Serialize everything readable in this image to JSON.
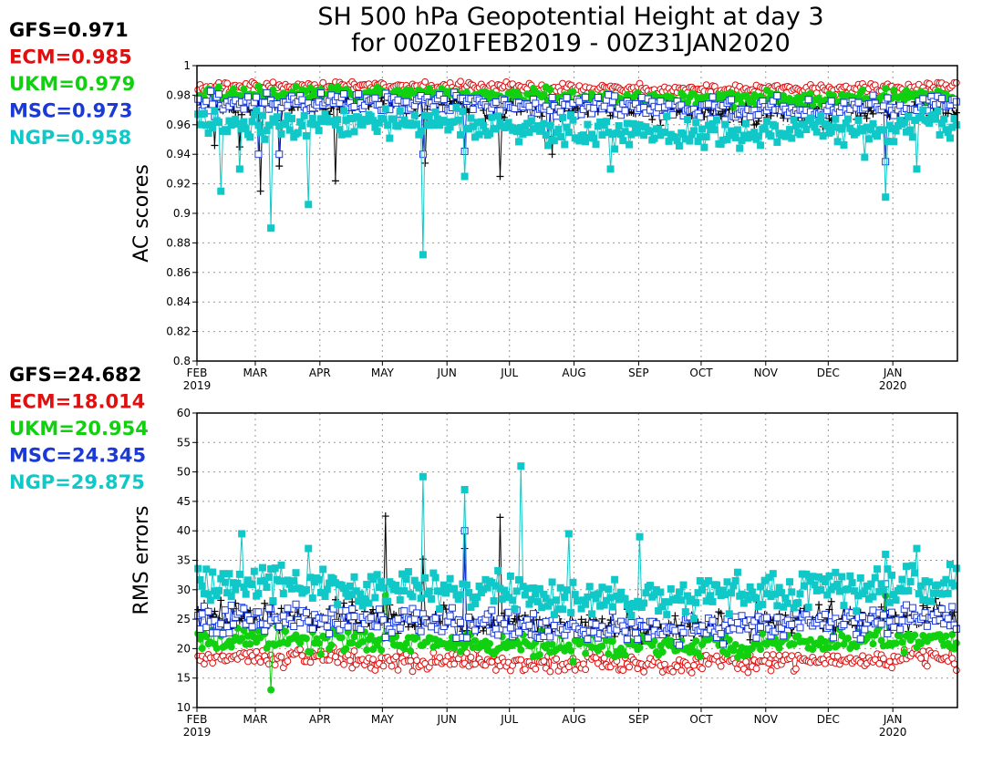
{
  "title": {
    "line1": "SH 500 hPa Geopotential Height at day 3",
    "line2": "for 00Z01FEB2019 - 00Z31JAN2020"
  },
  "colors": {
    "GFS": "#000000",
    "ECM": "#e01010",
    "UKM": "#10d010",
    "MSC": "#1a3ad8",
    "NGP": "#10c8c8"
  },
  "months": [
    "FEB",
    "MAR",
    "APR",
    "MAY",
    "JUN",
    "JUL",
    "AUG",
    "SEP",
    "OCT",
    "NOV",
    "DEC",
    "JAN"
  ],
  "month_days": [
    28,
    31,
    30,
    31,
    30,
    31,
    31,
    30,
    31,
    30,
    31,
    31
  ],
  "year_labels": [
    "2019",
    "2020"
  ],
  "chart_data": [
    {
      "type": "line",
      "ylabel": "AC scores",
      "ylim": [
        0.8,
        1.0
      ],
      "yticks": [
        "0.8",
        "0.82",
        "0.84",
        "0.86",
        "0.88",
        "0.9",
        "0.92",
        "0.94",
        "0.96",
        "0.98",
        "1"
      ],
      "grid": true,
      "x_range": [
        "2019-02-01",
        "2020-01-31"
      ],
      "scores": [
        {
          "model": "GFS",
          "label": "GFS=0.971"
        },
        {
          "model": "ECM",
          "label": "ECM=0.985"
        },
        {
          "model": "UKM",
          "label": "UKM=0.979"
        },
        {
          "model": "MSC",
          "label": "MSC=0.973"
        },
        {
          "model": "NGP",
          "label": "NGP=0.958"
        }
      ],
      "series": [
        {
          "name": "GFS",
          "marker": "plus",
          "mean": 0.971,
          "spread": 0.012,
          "dips": [
            [
              8,
              0.946
            ],
            [
              20,
              0.945
            ],
            [
              30,
              0.915
            ],
            [
              39,
              0.932
            ],
            [
              66,
              0.922
            ],
            [
              109,
              0.934
            ],
            [
              145,
              0.925
            ],
            [
              170,
              0.94
            ],
            [
              309,
              0.972
            ],
            [
              325,
              0.973
            ]
          ]
        },
        {
          "name": "ECM",
          "marker": "circle",
          "mean": 0.985,
          "spread": 0.005,
          "dips": []
        },
        {
          "name": "UKM",
          "marker": "filled-circle",
          "mean": 0.979,
          "spread": 0.007,
          "dips": []
        },
        {
          "name": "MSC",
          "marker": "square",
          "mean": 0.973,
          "spread": 0.01,
          "dips": [
            [
              29,
              0.94
            ],
            [
              39,
              0.94
            ],
            [
              108,
              0.94
            ],
            [
              128,
              0.942
            ],
            [
              168,
              0.95
            ],
            [
              305,
              0.97
            ],
            [
              330,
              0.935
            ]
          ]
        },
        {
          "name": "NGP",
          "marker": "filled-square",
          "mean": 0.958,
          "spread": 0.014,
          "dips": [
            [
              11,
              0.915
            ],
            [
              20,
              0.93
            ],
            [
              35,
              0.89
            ],
            [
              53,
              0.906
            ],
            [
              108,
              0.872
            ],
            [
              128,
              0.925
            ],
            [
              168,
              0.946
            ],
            [
              198,
              0.93
            ],
            [
              320,
              0.938
            ],
            [
              330,
              0.911
            ],
            [
              345,
              0.93
            ]
          ]
        }
      ]
    },
    {
      "type": "line",
      "ylabel": "RMS errors",
      "ylim": [
        10,
        60
      ],
      "yticks": [
        "10",
        "15",
        "20",
        "25",
        "30",
        "35",
        "40",
        "45",
        "50",
        "55",
        "60"
      ],
      "grid": true,
      "x_range": [
        "2019-02-01",
        "2020-01-31"
      ],
      "scores": [
        {
          "model": "GFS",
          "label": "GFS=24.682"
        },
        {
          "model": "ECM",
          "label": "ECM=18.014"
        },
        {
          "model": "UKM",
          "label": "UKM=20.954"
        },
        {
          "model": "MSC",
          "label": "MSC=24.345"
        },
        {
          "model": "NGP",
          "label": "NGP=29.875"
        }
      ],
      "series": [
        {
          "name": "GFS",
          "marker": "plus",
          "mean": 24.7,
          "spread": 3.5,
          "dips": [
            [
              90,
              42.5
            ],
            [
              108,
              35.2
            ],
            [
              128,
              37
            ],
            [
              145,
              42.3
            ],
            [
              268,
              28
            ],
            [
              304,
              28
            ]
          ]
        },
        {
          "name": "ECM",
          "marker": "circle",
          "mean": 18.0,
          "spread": 2.4,
          "dips": []
        },
        {
          "name": "UKM",
          "marker": "filled-circle",
          "mean": 21.0,
          "spread": 3.0,
          "dips": [
            [
              35,
              13
            ],
            [
              90,
              29
            ],
            [
              330,
              29
            ]
          ]
        },
        {
          "name": "MSC",
          "marker": "square",
          "mean": 24.3,
          "spread": 3.5,
          "dips": [
            [
              128,
              40
            ],
            [
              330,
              31
            ]
          ]
        },
        {
          "name": "NGP",
          "marker": "filled-square",
          "mean": 29.9,
          "spread": 4.5,
          "dips": [
            [
              21,
              39.5
            ],
            [
              53,
              37
            ],
            [
              108,
              49.2
            ],
            [
              128,
              47
            ],
            [
              155,
              51
            ],
            [
              178,
              39.5
            ],
            [
              212,
              39
            ],
            [
              330,
              36
            ],
            [
              345,
              37
            ]
          ]
        }
      ]
    }
  ]
}
